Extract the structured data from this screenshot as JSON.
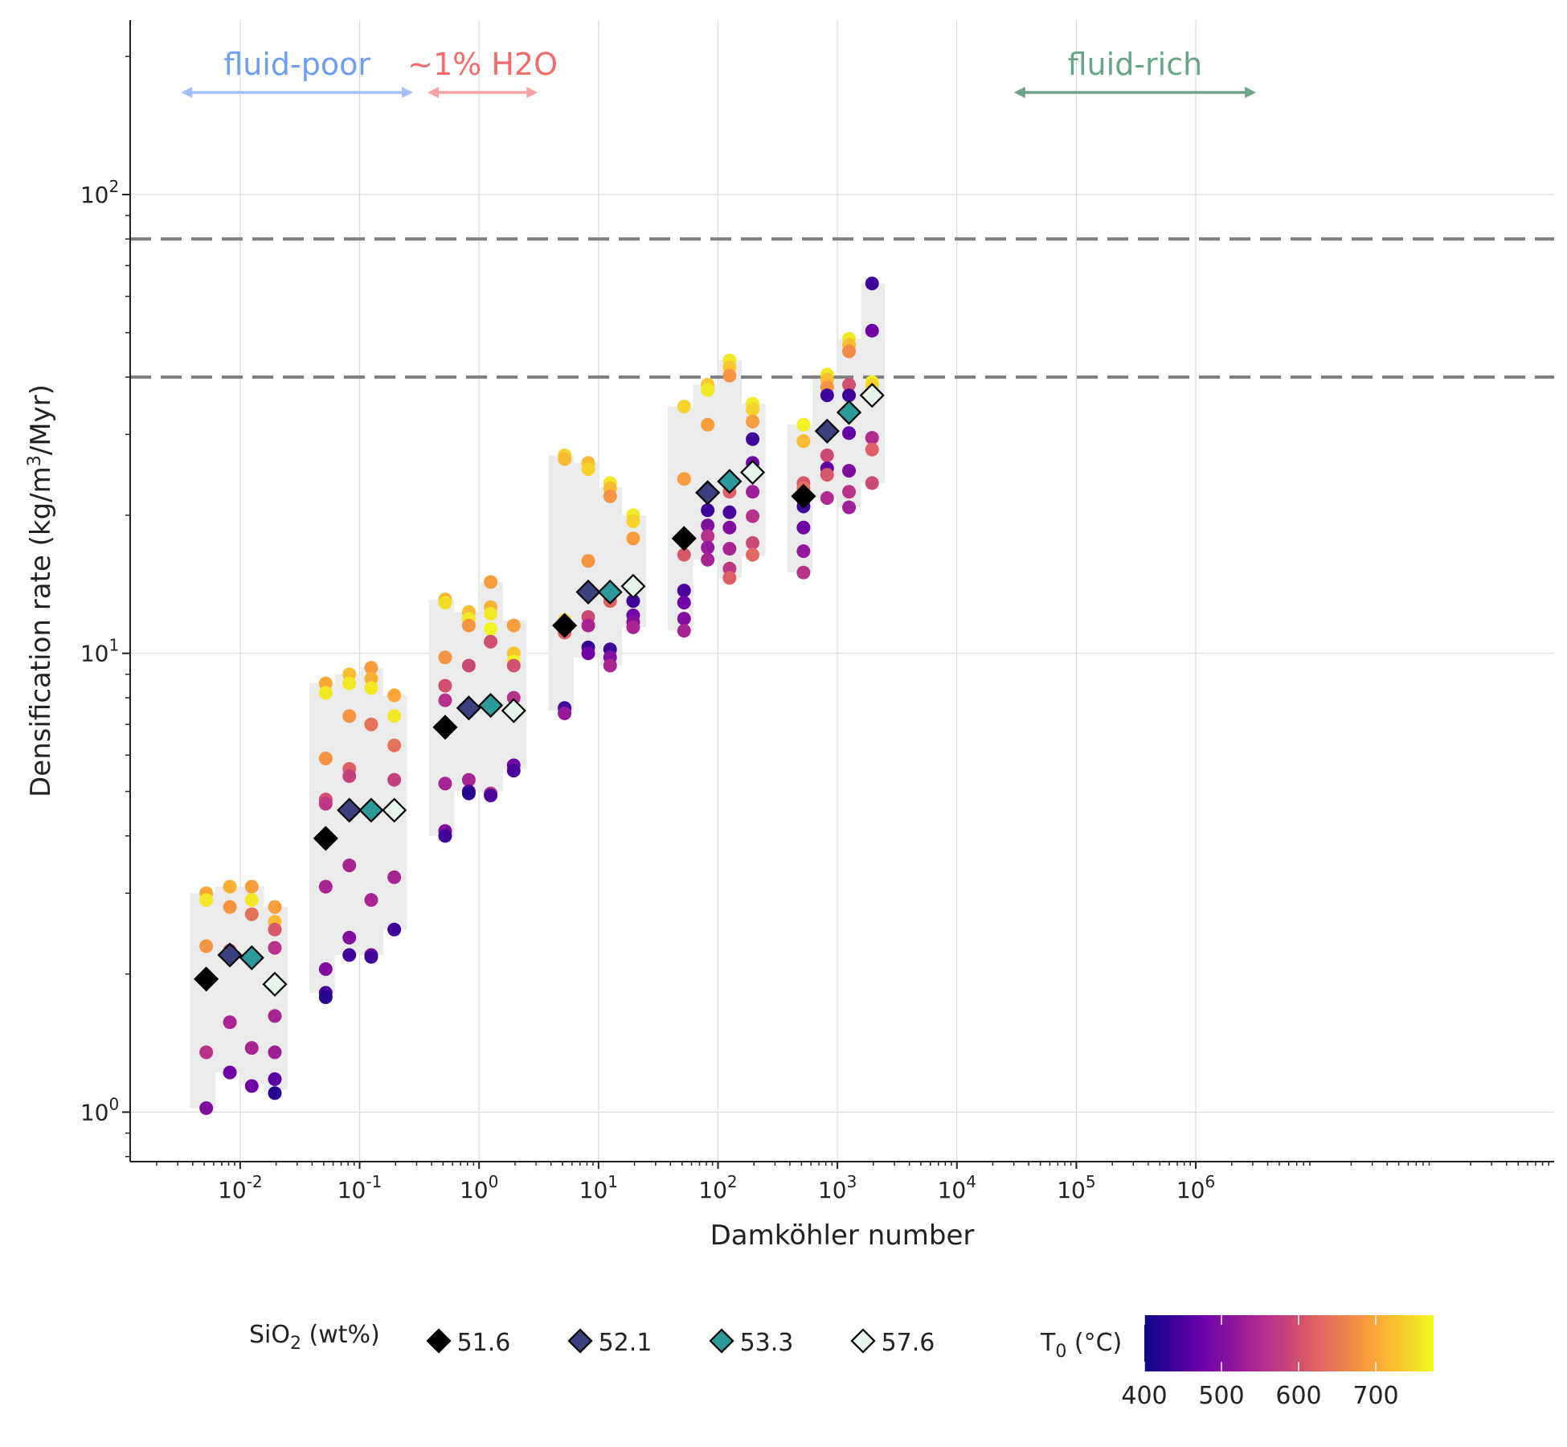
{
  "chart_data": {
    "type": "scatter",
    "xlabel": "Damköhler number",
    "ylabel_parts": {
      "pre": "Densification rate (kg/m",
      "sup": "3",
      "post": "/Myr)"
    },
    "xscale": "log",
    "yscale": "log",
    "xlim": [
      0.0012,
      1000000000
    ],
    "ylim": [
      0.78,
      240
    ],
    "x_ticks": [
      {
        "value": 0.01,
        "base": "10",
        "exp": "-2"
      },
      {
        "value": 0.1,
        "base": "10",
        "exp": "-1"
      },
      {
        "value": 1,
        "base": "10",
        "exp": "0"
      },
      {
        "value": 10,
        "base": "10",
        "exp": "1"
      },
      {
        "value": 100,
        "base": "10",
        "exp": "2"
      },
      {
        "value": 1000,
        "base": "10",
        "exp": "3"
      },
      {
        "value": 10000,
        "base": "10",
        "exp": "4"
      },
      {
        "value": 100000,
        "base": "10",
        "exp": "5"
      },
      {
        "value": 1000000,
        "base": "10",
        "exp": "6"
      }
    ],
    "y_ticks": [
      {
        "value": 1,
        "base": "10",
        "exp": "0"
      },
      {
        "value": 10,
        "base": "10",
        "exp": "1"
      },
      {
        "value": 100,
        "base": "10",
        "exp": "2"
      }
    ],
    "grid": true,
    "reference_lines": [
      {
        "y": 80,
        "style": "dashed"
      },
      {
        "y": 40,
        "style": "dashed"
      }
    ],
    "annotations": [
      {
        "text": "fluid-poor",
        "x_from": 0.0032,
        "x_to": 0.28,
        "color": "#6f9ef0",
        "arrow_color": "#a3bff5"
      },
      {
        "text": "~1% H2O",
        "x_from": 0.37,
        "x_to": 3.1,
        "color": "#f36b6b",
        "arrow_color": "#f7a3a3"
      },
      {
        "text": "fluid-rich",
        "x_from": 30000,
        "x_to": 3200000,
        "color": "#67a586",
        "arrow_color": "#6ea389"
      }
    ],
    "legend_sio2": {
      "title_parts": {
        "pre": "SiO",
        "sub": "2",
        "post": " (wt%)"
      },
      "placement": "bottom",
      "entries": [
        {
          "label": "51.6",
          "color": "#000000"
        },
        {
          "label": "52.1",
          "color": "#3b4080"
        },
        {
          "label": "53.3",
          "color": "#2a9a9a"
        },
        {
          "label": "57.6",
          "color": "#e6f5ec"
        }
      ]
    },
    "legend_t0": {
      "title_parts": {
        "pre": "T",
        "sub": "0",
        "post": " (°C)"
      },
      "min": 400,
      "max": 775,
      "ticks": [
        400,
        500,
        600,
        700
      ],
      "colormap": [
        "#0d0887",
        "#6a00a8",
        "#b12a90",
        "#e16462",
        "#fca636",
        "#f0f921"
      ]
    },
    "range_boxes": [
      {
        "x": [
          0.0038,
          0.0062
        ],
        "y": [
          1.02,
          3.0
        ]
      },
      {
        "x": [
          0.0062,
          0.0102
        ],
        "y": [
          1.22,
          3.1
        ]
      },
      {
        "x": [
          0.0102,
          0.0158
        ],
        "y": [
          1.15,
          3.1
        ]
      },
      {
        "x": [
          0.0158,
          0.025
        ],
        "y": [
          1.12,
          2.8
        ]
      },
      {
        "x": [
          0.038,
          0.062
        ],
        "y": [
          1.82,
          8.6
        ]
      },
      {
        "x": [
          0.062,
          0.102
        ],
        "y": [
          2.2,
          9.0
        ]
      },
      {
        "x": [
          0.102,
          0.158
        ],
        "y": [
          2.2,
          9.3
        ]
      },
      {
        "x": [
          0.158,
          0.25
        ],
        "y": [
          2.5,
          8.1
        ]
      },
      {
        "x": [
          0.38,
          0.62
        ],
        "y": [
          4.0,
          13.1
        ]
      },
      {
        "x": [
          0.62,
          1.02
        ],
        "y": [
          5.0,
          12.3
        ]
      },
      {
        "x": [
          1.02,
          1.58
        ],
        "y": [
          5.0,
          14.3
        ]
      },
      {
        "x": [
          1.58,
          2.5
        ],
        "y": [
          5.6,
          11.8
        ]
      },
      {
        "x": [
          3.8,
          6.2
        ],
        "y": [
          7.5,
          27.0
        ]
      },
      {
        "x": [
          6.2,
          10.2
        ],
        "y": [
          9.8,
          26.0
        ]
      },
      {
        "x": [
          10.2,
          15.8
        ],
        "y": [
          9.4,
          23.0
        ]
      },
      {
        "x": [
          15.8,
          25
        ],
        "y": [
          11.4,
          20.0
        ]
      },
      {
        "x": [
          38,
          62
        ],
        "y": [
          11.2,
          34.5
        ]
      },
      {
        "x": [
          62,
          102
        ],
        "y": [
          16.0,
          38.5
        ]
      },
      {
        "x": [
          102,
          158
        ],
        "y": [
          14.6,
          43.5
        ]
      },
      {
        "x": [
          158,
          250
        ],
        "y": [
          16.3,
          35.0
        ]
      },
      {
        "x": [
          380,
          620
        ],
        "y": [
          15.0,
          31.5
        ]
      },
      {
        "x": [
          620,
          1020
        ],
        "y": [
          21.8,
          40.5
        ]
      },
      {
        "x": [
          1020,
          1580
        ],
        "y": [
          20.8,
          48.5
        ]
      },
      {
        "x": [
          1580,
          2500
        ],
        "y": [
          23.5,
          64.0
        ]
      }
    ],
    "series_runs": [
      {
        "x": 0.0052,
        "points": [
          [
            3.0,
            700
          ],
          [
            2.9,
            760
          ],
          [
            2.3,
            680
          ],
          [
            1.35,
            560
          ],
          [
            1.02,
            500
          ]
        ]
      },
      {
        "x": 0.0082,
        "points": [
          [
            3.1,
            710
          ],
          [
            2.8,
            680
          ],
          [
            2.25,
            600
          ],
          [
            1.57,
            540
          ],
          [
            1.22,
            480
          ]
        ]
      },
      {
        "x": 0.0125,
        "points": [
          [
            3.1,
            690
          ],
          [
            2.9,
            760
          ],
          [
            2.7,
            640
          ],
          [
            1.38,
            540
          ],
          [
            1.14,
            480
          ]
        ]
      },
      {
        "x": 0.0195,
        "points": [
          [
            2.8,
            690
          ],
          [
            2.6,
            720
          ],
          [
            2.5,
            610
          ],
          [
            2.28,
            560
          ],
          [
            1.62,
            540
          ],
          [
            1.35,
            530
          ],
          [
            1.18,
            460
          ],
          [
            1.1,
            420
          ]
        ]
      },
      {
        "x": 0.052,
        "points": [
          [
            8.6,
            700
          ],
          [
            8.2,
            760
          ],
          [
            5.9,
            680
          ],
          [
            4.8,
            600
          ],
          [
            4.7,
            570
          ],
          [
            3.1,
            540
          ],
          [
            2.05,
            500
          ],
          [
            1.82,
            450
          ],
          [
            1.78,
            420
          ]
        ]
      },
      {
        "x": 0.082,
        "points": [
          [
            9.0,
            720
          ],
          [
            8.6,
            760
          ],
          [
            7.3,
            680
          ],
          [
            5.6,
            620
          ],
          [
            5.4,
            580
          ],
          [
            3.45,
            540
          ],
          [
            2.4,
            500
          ],
          [
            2.2,
            440
          ]
        ]
      },
      {
        "x": 0.125,
        "points": [
          [
            9.3,
            690
          ],
          [
            8.8,
            710
          ],
          [
            8.4,
            760
          ],
          [
            7.0,
            640
          ],
          [
            2.9,
            540
          ],
          [
            2.2,
            500
          ],
          [
            2.18,
            440
          ]
        ]
      },
      {
        "x": 0.195,
        "points": [
          [
            8.1,
            700
          ],
          [
            7.3,
            760
          ],
          [
            6.3,
            640
          ],
          [
            5.3,
            580
          ],
          [
            3.25,
            540
          ],
          [
            2.5,
            440
          ]
        ]
      },
      {
        "x": 0.52,
        "points": [
          [
            13.1,
            710
          ],
          [
            12.9,
            750
          ],
          [
            9.8,
            680
          ],
          [
            8.5,
            600
          ],
          [
            7.9,
            560
          ],
          [
            5.2,
            540
          ],
          [
            4.1,
            500
          ],
          [
            4.0,
            440
          ]
        ]
      },
      {
        "x": 0.82,
        "points": [
          [
            12.3,
            720
          ],
          [
            11.9,
            760
          ],
          [
            11.5,
            680
          ],
          [
            9.4,
            590
          ],
          [
            5.3,
            540
          ],
          [
            5.0,
            460
          ],
          [
            4.95,
            420
          ]
        ]
      },
      {
        "x": 1.25,
        "points": [
          [
            14.3,
            690
          ],
          [
            12.6,
            710
          ],
          [
            12.2,
            760
          ],
          [
            11.3,
            770
          ],
          [
            10.6,
            600
          ],
          [
            4.95,
            560
          ],
          [
            4.9,
            450
          ]
        ]
      },
      {
        "x": 1.95,
        "points": [
          [
            11.5,
            690
          ],
          [
            10.0,
            730
          ],
          [
            9.6,
            770
          ],
          [
            9.4,
            600
          ],
          [
            8.0,
            560
          ],
          [
            5.7,
            480
          ],
          [
            5.55,
            450
          ]
        ]
      },
      {
        "x": 5.2,
        "points": [
          [
            27.0,
            740
          ],
          [
            26.5,
            720
          ],
          [
            11.8,
            750
          ],
          [
            11.1,
            620
          ],
          [
            7.6,
            440
          ],
          [
            7.4,
            520
          ]
        ]
      },
      {
        "x": 8.2,
        "points": [
          [
            26.0,
            720
          ],
          [
            25.2,
            740
          ],
          [
            15.9,
            680
          ],
          [
            12.0,
            590
          ],
          [
            11.5,
            540
          ],
          [
            10.3,
            430
          ],
          [
            10.0,
            480
          ]
        ]
      },
      {
        "x": 12.5,
        "points": [
          [
            23.5,
            760
          ],
          [
            22.9,
            720
          ],
          [
            22.0,
            680
          ],
          [
            13.0,
            620
          ],
          [
            10.2,
            440
          ],
          [
            9.8,
            500
          ],
          [
            9.4,
            540
          ]
        ]
      },
      {
        "x": 19.5,
        "points": [
          [
            20.0,
            760
          ],
          [
            19.4,
            740
          ],
          [
            17.8,
            690
          ],
          [
            13.0,
            440
          ],
          [
            12.1,
            480
          ],
          [
            11.7,
            500
          ],
          [
            11.4,
            540
          ]
        ]
      },
      {
        "x": 52,
        "points": [
          [
            34.5,
            740
          ],
          [
            24.0,
            690
          ],
          [
            17.6,
            640
          ],
          [
            16.4,
            610
          ],
          [
            13.7,
            450
          ],
          [
            12.9,
            480
          ],
          [
            11.9,
            500
          ],
          [
            11.2,
            540
          ]
        ]
      },
      {
        "x": 82,
        "points": [
          [
            38.5,
            730
          ],
          [
            37.5,
            760
          ],
          [
            31.5,
            690
          ],
          [
            20.5,
            440
          ],
          [
            19.0,
            500
          ],
          [
            18.0,
            560
          ],
          [
            17.0,
            520
          ],
          [
            16.0,
            540
          ]
        ]
      },
      {
        "x": 125,
        "points": [
          [
            43.5,
            760
          ],
          [
            42.0,
            730
          ],
          [
            40.3,
            680
          ],
          [
            22.5,
            620
          ],
          [
            20.3,
            450
          ],
          [
            18.8,
            500
          ],
          [
            16.9,
            540
          ],
          [
            15.3,
            570
          ],
          [
            14.6,
            620
          ]
        ]
      },
      {
        "x": 195,
        "points": [
          [
            35.0,
            760
          ],
          [
            34.0,
            740
          ],
          [
            32.0,
            690
          ],
          [
            29.3,
            440
          ],
          [
            26.0,
            480
          ],
          [
            22.5,
            530
          ],
          [
            19.9,
            560
          ],
          [
            17.4,
            590
          ],
          [
            16.4,
            630
          ]
        ]
      },
      {
        "x": 520,
        "points": [
          [
            31.5,
            770
          ],
          [
            29.0,
            720
          ],
          [
            23.5,
            610
          ],
          [
            22.9,
            640
          ],
          [
            21.8,
            700
          ],
          [
            21.5,
            650
          ],
          [
            20.9,
            440
          ],
          [
            18.8,
            480
          ],
          [
            16.7,
            520
          ],
          [
            15.0,
            560
          ]
        ]
      },
      {
        "x": 820,
        "points": [
          [
            40.5,
            760
          ],
          [
            39.5,
            720
          ],
          [
            38.0,
            680
          ],
          [
            36.5,
            440
          ],
          [
            27.0,
            590
          ],
          [
            25.3,
            470
          ],
          [
            24.5,
            610
          ],
          [
            21.8,
            550
          ]
        ]
      },
      {
        "x": 1250,
        "points": [
          [
            48.5,
            760
          ],
          [
            47.0,
            720
          ],
          [
            45.5,
            670
          ],
          [
            38.5,
            600
          ],
          [
            36.5,
            440
          ],
          [
            30.2,
            470
          ],
          [
            25.0,
            500
          ],
          [
            22.5,
            560
          ],
          [
            20.8,
            530
          ]
        ]
      },
      {
        "x": 1950,
        "points": [
          [
            64.0,
            440
          ],
          [
            50.5,
            480
          ],
          [
            39.0,
            770
          ],
          [
            38.5,
            740
          ],
          [
            29.5,
            550
          ],
          [
            27.8,
            620
          ],
          [
            23.5,
            590
          ]
        ]
      }
    ],
    "series_means": [
      {
        "name": "51.6",
        "points": [
          [
            0.0052,
            1.95
          ],
          [
            0.052,
            3.95
          ],
          [
            0.52,
            6.9
          ],
          [
            5.2,
            11.5
          ],
          [
            52,
            17.8
          ],
          [
            520,
            22.0
          ]
        ]
      },
      {
        "name": "52.1",
        "points": [
          [
            0.0082,
            2.2
          ],
          [
            0.082,
            4.55
          ],
          [
            0.82,
            7.6
          ],
          [
            8.2,
            13.6
          ],
          [
            82,
            22.4
          ],
          [
            820,
            30.5
          ]
        ]
      },
      {
        "name": "53.3",
        "points": [
          [
            0.0125,
            2.17
          ],
          [
            0.125,
            4.55
          ],
          [
            1.25,
            7.7
          ],
          [
            12.5,
            13.6
          ],
          [
            125,
            23.7
          ],
          [
            1250,
            33.5
          ]
        ]
      },
      {
        "name": "57.6",
        "points": [
          [
            0.0195,
            1.9
          ],
          [
            0.195,
            4.55
          ],
          [
            1.95,
            7.5
          ],
          [
            19.5,
            14.0
          ],
          [
            195,
            24.8
          ],
          [
            1950,
            36.5
          ]
        ]
      }
    ]
  }
}
